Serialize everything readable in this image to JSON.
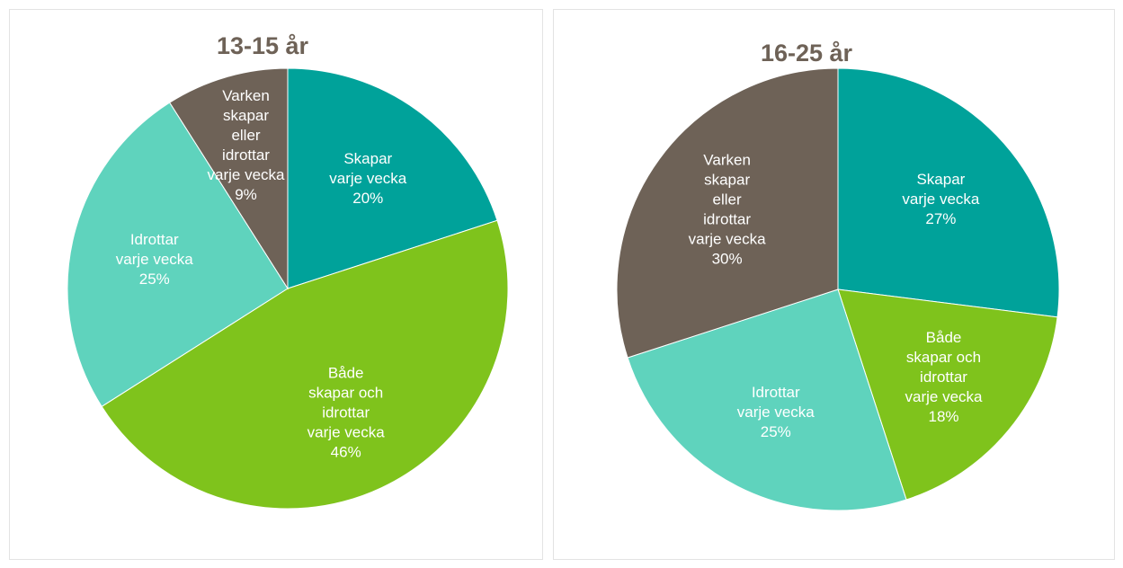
{
  "chart_data": [
    {
      "type": "pie",
      "title": "13-15 år",
      "categories": [
        "Skapar\nvarje vecka",
        "Både\nskapar och\nidrottar\nvarje vecka",
        "Idrottar\nvarje vecka",
        "Varken\nskapar\neller\nidrottar\nvarje vecka"
      ],
      "values": [
        20,
        46,
        25,
        9
      ],
      "value_labels": [
        "20%",
        "46%",
        "25%",
        "9%"
      ],
      "colors": [
        "#00a29a",
        "#7fc31c",
        "#5fd3bd",
        "#6e6257"
      ]
    },
    {
      "type": "pie",
      "title": "16-25 år",
      "categories": [
        "Skapar\nvarje vecka",
        "Både\nskapar och\nidrottar\nvarje vecka",
        "Idrottar\nvarje vecka",
        "Varken\nskapar\neller\nidrottar\nvarje vecka"
      ],
      "values": [
        27,
        18,
        25,
        30
      ],
      "value_labels": [
        "27%",
        "18%",
        "25%",
        "30%"
      ],
      "colors": [
        "#00a29a",
        "#7fc31c",
        "#5fd3bd",
        "#6e6257"
      ]
    }
  ]
}
